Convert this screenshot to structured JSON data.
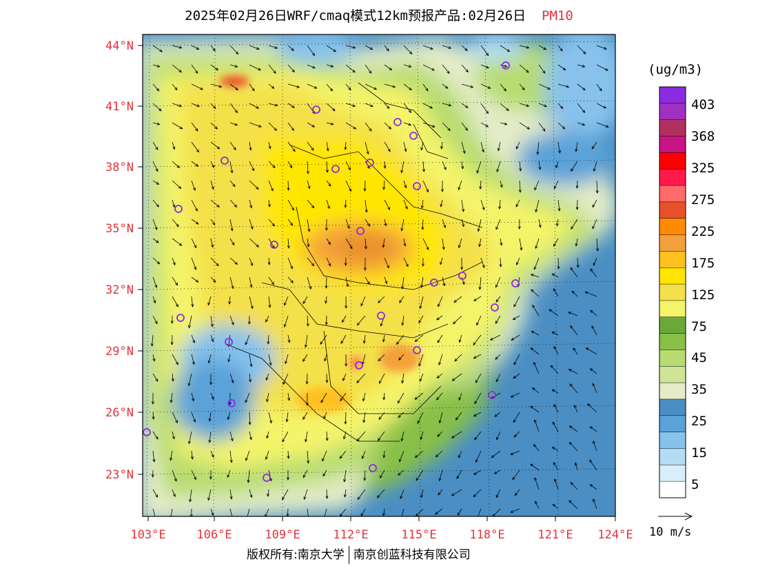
{
  "header": {
    "title": "2025年02月26日WRF/cmaq模式12km预报产品:02月26日",
    "pollutant": "PM10"
  },
  "map": {
    "lat_ticks": [
      "44°N",
      "41°N",
      "38°N",
      "35°N",
      "32°N",
      "29°N",
      "26°N",
      "23°N"
    ],
    "lon_ticks": [
      "103°E",
      "106°E",
      "109°E",
      "112°E",
      "115°E",
      "118°E",
      "121°E",
      "124°E"
    ],
    "tick_color": "#e8303a"
  },
  "legend": {
    "unit": "(ug/m3)",
    "labels": [
      "403",
      "368",
      "325",
      "275",
      "225",
      "175",
      "125",
      "75",
      "45",
      "35",
      "25",
      "15",
      "5"
    ],
    "colors": [
      "#8a2be2",
      "#a030c0",
      "#b03060",
      "#c81484",
      "#ff0000",
      "#ff1a4a",
      "#ff6a6a",
      "#e8502a",
      "#ff8c00",
      "#f4a03a",
      "#ffc020",
      "#ffe600",
      "#f4e04a",
      "#f4f46a",
      "#6aa83a",
      "#88c048",
      "#b8dc70",
      "#d0e498",
      "#e4ecc8",
      "#4a8ec4",
      "#5aa2d8",
      "#86c2ec",
      "#b4dcf4",
      "#daeefa",
      "#ffffff"
    ],
    "wind_scale": "10 m/s"
  },
  "credit": {
    "left": "版权所有:南京大学",
    "right": "南京创蓝科技有限公司"
  }
}
